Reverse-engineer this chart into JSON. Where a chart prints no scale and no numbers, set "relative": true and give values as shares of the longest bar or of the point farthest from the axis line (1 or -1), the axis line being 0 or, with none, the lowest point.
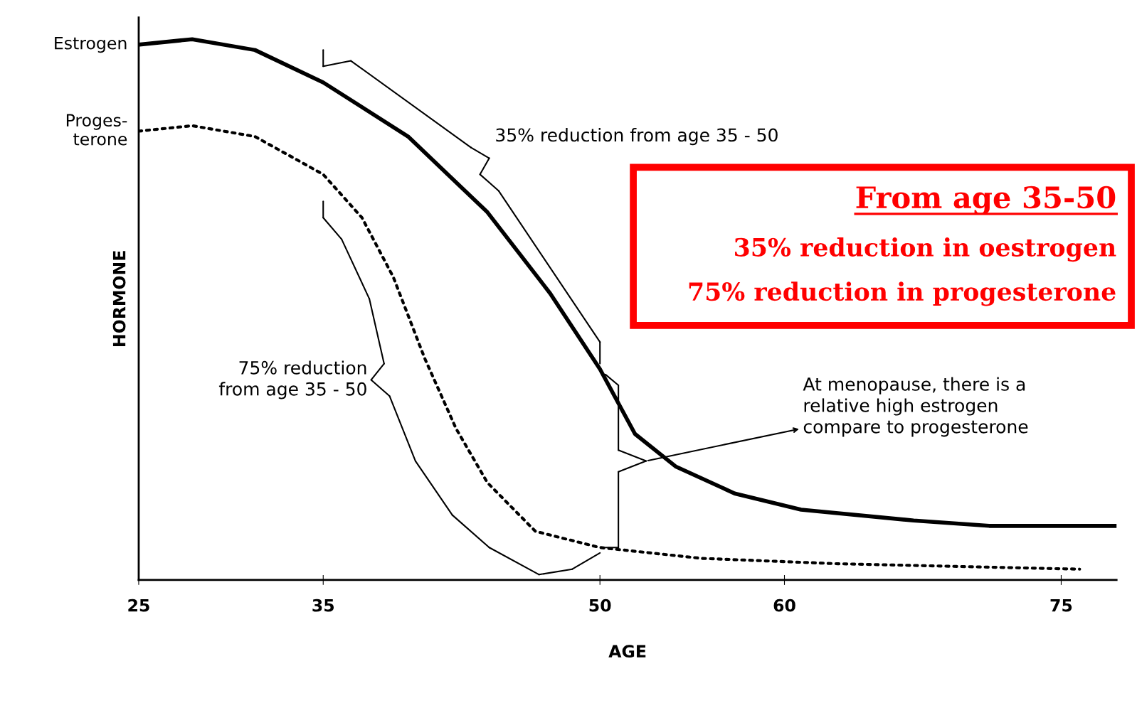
{
  "chart_data": {
    "type": "line",
    "relative": true,
    "xlabel": "AGE",
    "ylabel": "HORMONE",
    "xlim": [
      25,
      78
    ],
    "xticks": [
      25,
      35,
      50,
      60,
      75
    ],
    "grid": false,
    "legend": false,
    "marker": "none",
    "series": [
      {
        "name": "Estrogen",
        "color": "#000000",
        "line_style": "solid",
        "x": [
          25,
          27.9,
          31.3,
          35,
          39.6,
          43.9,
          47.3,
          50,
          51.9,
          54.1,
          57.3,
          60.9,
          67.0,
          71.1,
          78
        ],
        "values": [
          0.99,
          1.0,
          0.98,
          0.92,
          0.82,
          0.68,
          0.53,
          0.39,
          0.27,
          0.21,
          0.16,
          0.13,
          0.11,
          0.1,
          0.1
        ]
      },
      {
        "name": "Proges-\nterone",
        "color": "#000000",
        "line_style": "dotted",
        "x": [
          25,
          27.9,
          31.3,
          35,
          37.1,
          38.8,
          40.5,
          42.2,
          43.9,
          46.5,
          50,
          55.5,
          62.9,
          76.0
        ],
        "values": [
          0.83,
          0.84,
          0.82,
          0.75,
          0.67,
          0.56,
          0.41,
          0.28,
          0.18,
          0.09,
          0.06,
          0.04,
          0.03,
          0.02
        ]
      }
    ],
    "annotations": [
      "35% reduction from age 35 - 50",
      "75% reduction\nfrom age 35 - 50",
      "At menopause, there is a\nrelative high estrogen\ncompare to progesterone",
      "From age 35-50",
      "35% reduction in oestrogen",
      "75% reduction in progesterone"
    ]
  }
}
